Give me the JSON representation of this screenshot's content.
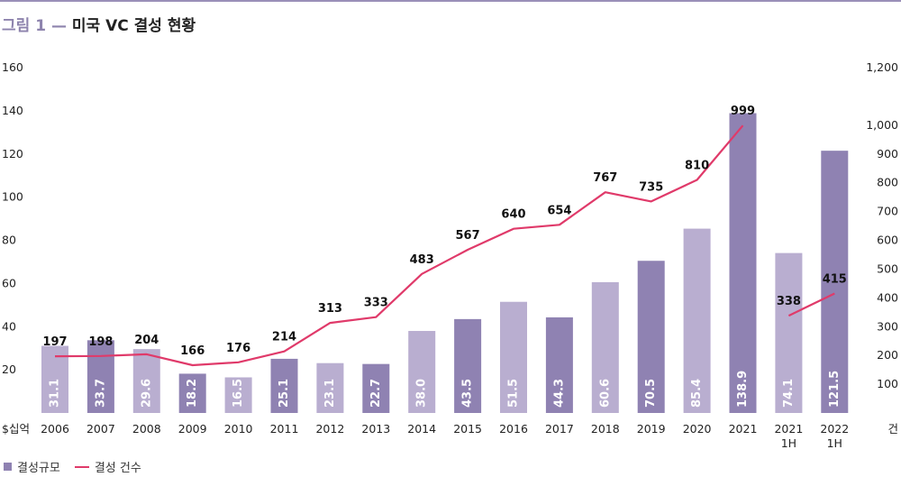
{
  "header": {
    "figure_label": "그림 1 —",
    "title": "미국 VC 결성 현황"
  },
  "chart_data": {
    "type": "bar",
    "categories": [
      "2006",
      "2007",
      "2008",
      "2009",
      "2010",
      "2011",
      "2012",
      "2013",
      "2014",
      "2015",
      "2016",
      "2017",
      "2018",
      "2019",
      "2020",
      "2021",
      "2021 1H",
      "2022 1H"
    ],
    "series": [
      {
        "name": "결성규모",
        "type": "bar",
        "axis": "left",
        "values": [
          31.1,
          33.7,
          29.6,
          18.2,
          16.5,
          25.1,
          23.1,
          22.7,
          38.0,
          43.5,
          51.5,
          44.3,
          60.6,
          70.5,
          85.4,
          138.9,
          74.1,
          121.5
        ],
        "labels": [
          "31.1",
          "33.7",
          "29.6",
          "18.2",
          "16.5",
          "25.1",
          "23.1",
          "22.7",
          "38.0",
          "43.5",
          "51.5",
          "44.3",
          "60.6",
          "70.5",
          "85.4",
          "138.9",
          "74.1",
          "121.5"
        ],
        "styles": [
          "light",
          "dark",
          "light",
          "dark",
          "light",
          "dark",
          "light",
          "dark",
          "light",
          "dark",
          "light",
          "dark",
          "light",
          "dark",
          "light",
          "dark",
          "light",
          "dark"
        ]
      },
      {
        "name": "결성 건수",
        "type": "line",
        "axis": "right",
        "values": [
          197,
          198,
          204,
          166,
          176,
          214,
          313,
          333,
          483,
          567,
          640,
          654,
          767,
          735,
          810,
          999,
          338,
          415
        ],
        "labels": [
          "197",
          "198",
          "204",
          "166",
          "176",
          "214",
          "313",
          "333",
          "483",
          "567",
          "640",
          "654",
          "767",
          "735",
          "810",
          "999",
          "338",
          "415"
        ],
        "segments": [
          [
            0,
            15
          ],
          [
            16,
            17
          ]
        ]
      }
    ],
    "y_left": {
      "ylim": [
        0,
        160
      ],
      "ticks": [
        20,
        40,
        60,
        80,
        100,
        120,
        140,
        160
      ],
      "tick_labels": [
        "20",
        "40",
        "60",
        "80",
        "100",
        "120",
        "140",
        "160"
      ],
      "unit_label": "$십억"
    },
    "y_right": {
      "ylim": [
        0,
        1200
      ],
      "ticks": [
        100,
        200,
        300,
        400,
        500,
        600,
        700,
        800,
        900,
        1000,
        1200
      ],
      "tick_labels": [
        "100",
        "200",
        "300",
        "400",
        "500",
        "600",
        "700",
        "800",
        "900",
        "1,000",
        "1,200"
      ],
      "unit_label": "건"
    },
    "legend": {
      "position": "bottom-left",
      "items": [
        "결성규모",
        "결성 건수"
      ]
    },
    "colors": {
      "bar_light": "#b9aed0",
      "bar_dark": "#8f82b2",
      "line": "#e03a6a",
      "bar_label": "#ffffff"
    },
    "grid": false
  }
}
